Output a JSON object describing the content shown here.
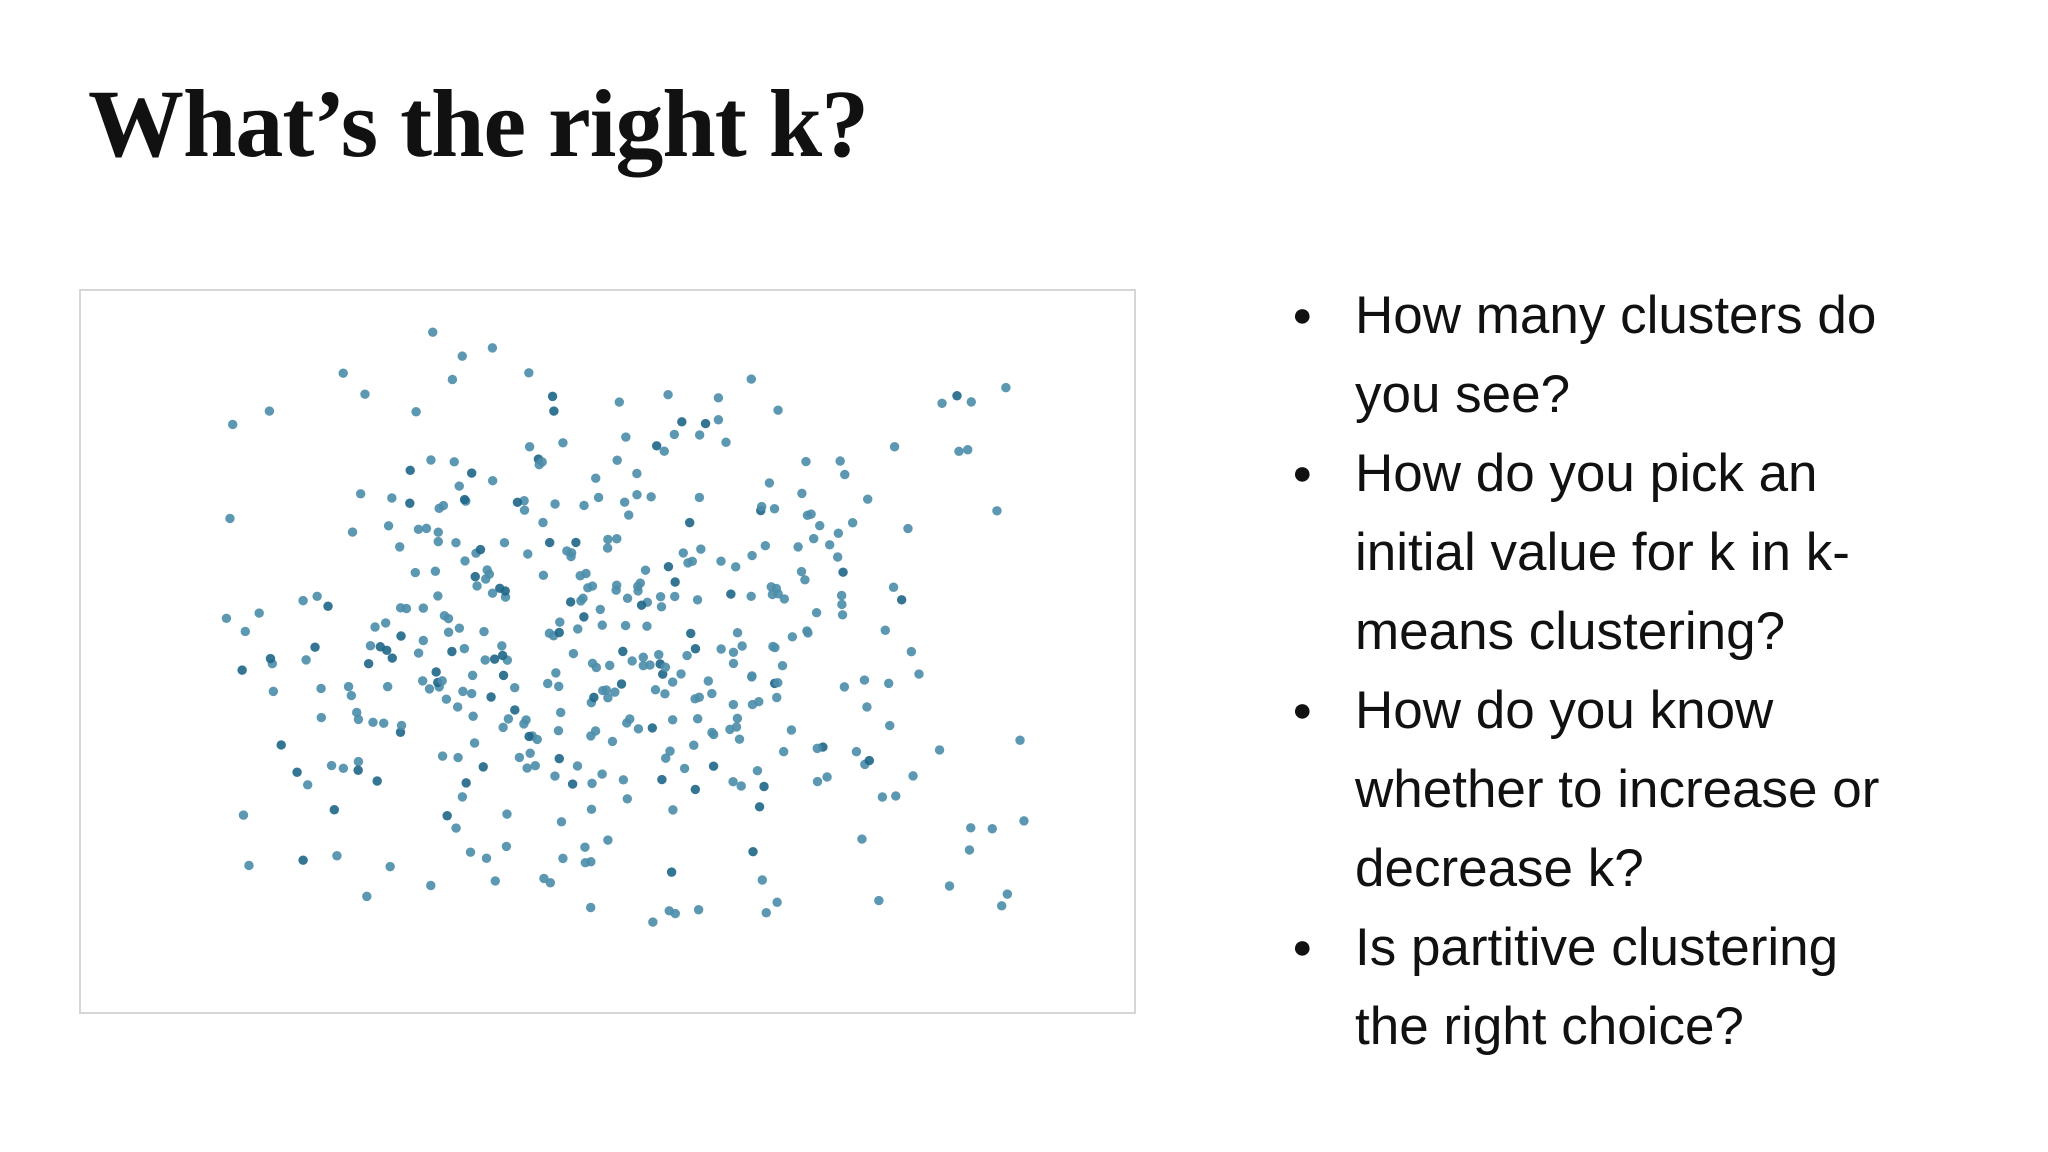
{
  "title": "What’s the right k?",
  "bullets": [
    "How many clusters do you see?",
    "How do you pick an initial value for k in k-means clustering?",
    "How do you know whether to increase or decrease k?",
    "Is partitive clustering the right choice?"
  ]
}
